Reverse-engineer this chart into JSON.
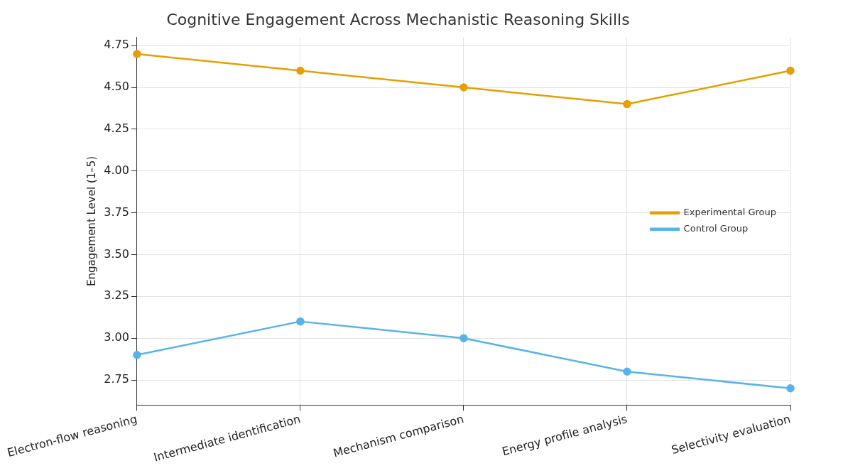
{
  "chart_data": {
    "type": "line",
    "title": "Cognitive Engagement Across Mechanistic Reasoning Skills",
    "ylabel": "Engagement Level (1–5)",
    "categories": [
      "Electron-flow reasoning",
      "Intermediate identification",
      "Mechanism comparison",
      "Energy profile analysis",
      "Selectivity evaluation"
    ],
    "series": [
      {
        "name": "Experimental Group",
        "color": "#e69f00",
        "values": [
          4.7,
          4.6,
          4.5,
          4.4,
          4.6
        ]
      },
      {
        "name": "Control Group",
        "color": "#56b4e9",
        "values": [
          2.9,
          3.1,
          3.0,
          2.8,
          2.7
        ]
      }
    ],
    "ylim": [
      2.6,
      4.8
    ],
    "yticks": [
      2.75,
      {
        "value": 3,
        "label": "3.00"
      },
      3.25,
      {
        "value": 3.5,
        "label": "3.50"
      },
      3.75,
      {
        "value": 4,
        "label": "4.00"
      },
      4.25,
      {
        "value": 4.5,
        "label": "4.50"
      },
      4.75
    ],
    "grid": true,
    "legend": "right",
    "marker": "circle",
    "line_style": "solid"
  }
}
